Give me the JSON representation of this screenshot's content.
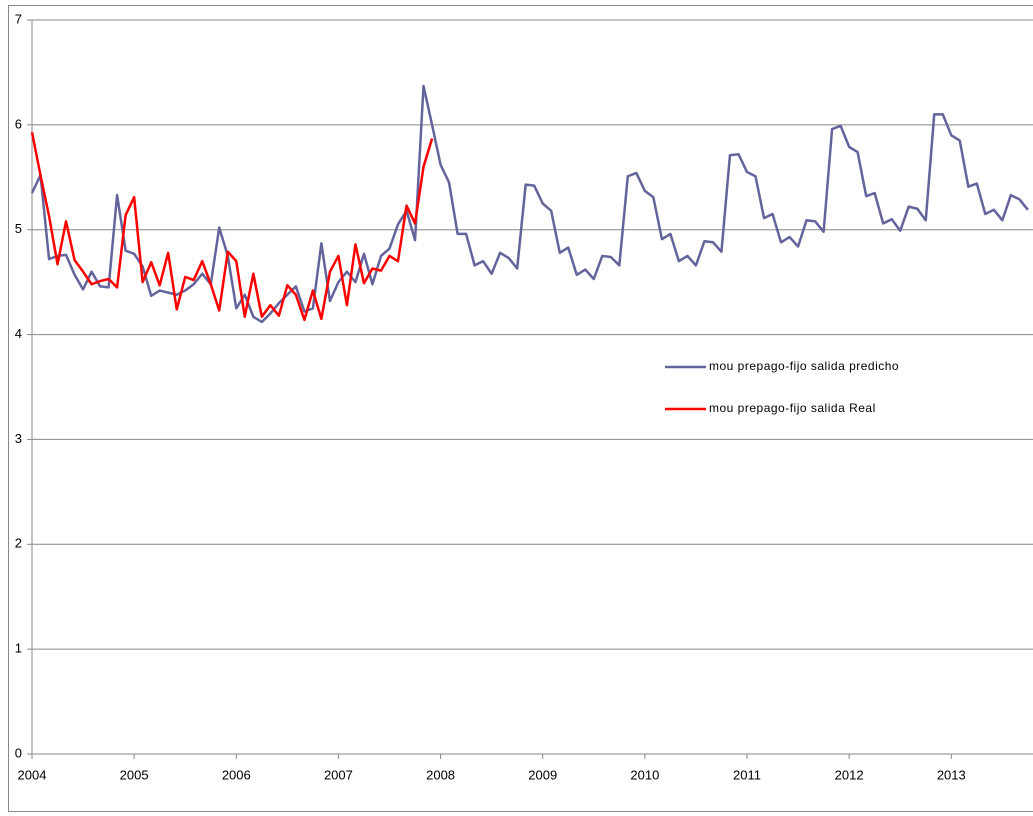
{
  "chart_data": {
    "type": "line",
    "x": [
      2004,
      2004.083,
      2004.167,
      2004.25,
      2004.333,
      2004.417,
      2004.5,
      2004.583,
      2004.667,
      2004.75,
      2004.833,
      2004.917,
      2005,
      2005.083,
      2005.167,
      2005.25,
      2005.333,
      2005.417,
      2005.5,
      2005.583,
      2005.667,
      2005.75,
      2005.833,
      2005.917,
      2006,
      2006.083,
      2006.167,
      2006.25,
      2006.333,
      2006.417,
      2006.5,
      2006.583,
      2006.667,
      2006.75,
      2006.833,
      2006.917,
      2007,
      2007.083,
      2007.167,
      2007.25,
      2007.333,
      2007.417,
      2007.5,
      2007.583,
      2007.667,
      2007.75,
      2007.833,
      2007.917,
      2008,
      2008.083,
      2008.167,
      2008.25,
      2008.333,
      2008.417,
      2008.5,
      2008.583,
      2008.667,
      2008.75,
      2008.833,
      2008.917,
      2009,
      2009.083,
      2009.167,
      2009.25,
      2009.333,
      2009.417,
      2009.5,
      2009.583,
      2009.667,
      2009.75,
      2009.833,
      2009.917,
      2010,
      2010.083,
      2010.167,
      2010.25,
      2010.333,
      2010.417,
      2010.5,
      2010.583,
      2010.667,
      2010.75,
      2010.833,
      2010.917,
      2011,
      2011.083,
      2011.167,
      2011.25,
      2011.333,
      2011.417,
      2011.5,
      2011.583,
      2011.667,
      2011.75,
      2011.833,
      2011.917,
      2012,
      2012.083,
      2012.167,
      2012.25,
      2012.333,
      2012.417,
      2012.5,
      2012.583,
      2012.667,
      2012.75,
      2012.833,
      2012.917,
      2013,
      2013.083,
      2013.167,
      2013.25,
      2013.333,
      2013.417,
      2013.5,
      2013.583,
      2013.667,
      2013.75
    ],
    "series": [
      {
        "name": "mou prepago-fijo salida predicho",
        "color": "#64649c",
        "values": [
          5.35,
          5.52,
          4.72,
          4.75,
          4.76,
          4.57,
          4.43,
          4.6,
          4.46,
          4.45,
          5.33,
          4.8,
          4.77,
          4.65,
          4.37,
          4.42,
          4.4,
          4.38,
          4.42,
          4.48,
          4.58,
          4.48,
          5.02,
          4.75,
          4.25,
          4.38,
          4.17,
          4.12,
          4.2,
          4.3,
          4.38,
          4.46,
          4.22,
          4.25,
          4.87,
          4.32,
          4.5,
          4.6,
          4.5,
          4.77,
          4.48,
          4.75,
          4.82,
          5.05,
          5.18,
          4.9,
          6.37,
          6.0,
          5.62,
          5.45,
          4.96,
          4.96,
          4.66,
          4.7,
          4.58,
          4.78,
          4.73,
          4.63,
          5.43,
          5.42,
          5.25,
          5.18,
          4.78,
          4.83,
          4.57,
          4.62,
          4.53,
          4.75,
          4.74,
          4.66,
          5.51,
          5.54,
          5.37,
          5.31,
          4.91,
          4.96,
          4.7,
          4.75,
          4.66,
          4.89,
          4.88,
          4.79,
          5.71,
          5.72,
          5.55,
          5.51,
          5.11,
          5.15,
          4.88,
          4.93,
          4.84,
          5.09,
          5.08,
          4.98,
          5.96,
          5.99,
          5.79,
          5.74,
          5.32,
          5.35,
          5.06,
          5.1,
          4.99,
          5.22,
          5.2,
          5.09,
          6.1,
          6.1,
          5.9,
          5.85,
          5.41,
          5.44,
          5.15,
          5.19,
          5.09,
          5.33,
          5.29,
          5.19
        ]
      },
      {
        "name": "mou prepago-fijo salida Real",
        "color": "#ff0000",
        "values": [
          5.93,
          5.52,
          5.13,
          4.67,
          5.08,
          4.71,
          4.6,
          4.48,
          4.51,
          4.53,
          4.45,
          5.14,
          5.31,
          4.5,
          4.69,
          4.47,
          4.78,
          4.24,
          4.55,
          4.52,
          4.7,
          4.48,
          4.23,
          4.79,
          4.7,
          4.17,
          4.58,
          4.17,
          4.28,
          4.18,
          4.47,
          4.38,
          4.14,
          4.42,
          4.15,
          4.6,
          4.75,
          4.28,
          4.86,
          4.49,
          4.63,
          4.61,
          4.75,
          4.7,
          5.23,
          5.06,
          5.6,
          5.87,
          null,
          null,
          null,
          null,
          null,
          null,
          null,
          null,
          null,
          null,
          null,
          null,
          null,
          null,
          null,
          null,
          null,
          null,
          null,
          null,
          null,
          null,
          null,
          null,
          null,
          null,
          null,
          null,
          null,
          null,
          null,
          null,
          null,
          null,
          null,
          null,
          null,
          null,
          null,
          null,
          null,
          null,
          null,
          null,
          null,
          null,
          null,
          null,
          null,
          null,
          null,
          null,
          null,
          null,
          null,
          null,
          null,
          null,
          null,
          null,
          null,
          null,
          null,
          null,
          null,
          null,
          null,
          null,
          null,
          null
        ]
      }
    ],
    "xlim": [
      2004,
      2013.8
    ],
    "xticks": [
      2004,
      2005,
      2006,
      2007,
      2008,
      2009,
      2010,
      2011,
      2012,
      2013
    ],
    "ylim": [
      0,
      7
    ],
    "yticks": [
      0,
      1,
      2,
      3,
      4,
      5,
      6,
      7
    ],
    "grid": true
  }
}
